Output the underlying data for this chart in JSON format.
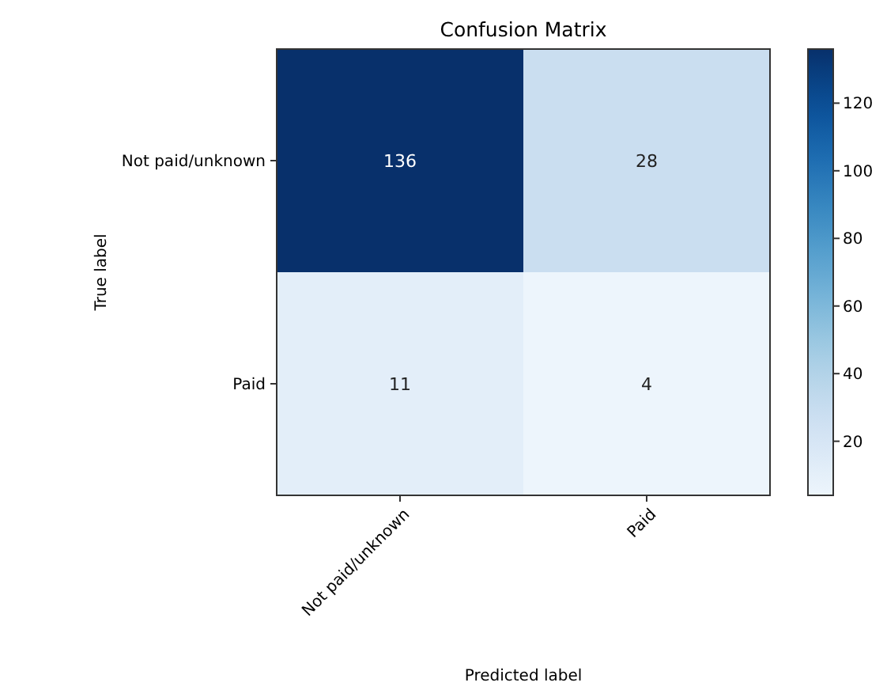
{
  "chart_data": {
    "type": "heatmap",
    "title": "Confusion Matrix",
    "xlabel": "Predicted label",
    "ylabel": "True label",
    "categories": [
      "Not paid/unknown",
      "Paid"
    ],
    "y_categories": [
      "Not paid/unknown",
      "Paid"
    ],
    "cells": [
      [
        136,
        28
      ],
      [
        11,
        4
      ]
    ],
    "clim": [
      4,
      136
    ],
    "cticks": [
      20,
      40,
      60,
      80,
      100,
      120
    ],
    "data_labels": true
  }
}
